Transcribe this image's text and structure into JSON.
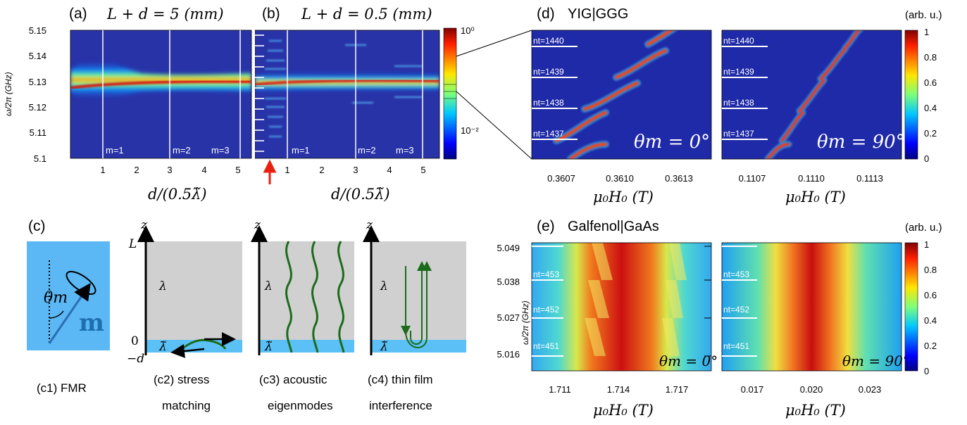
{
  "labels": {
    "panel_a": "(a)",
    "title_a": "L + d = 5  (mm)",
    "panel_b": "(b)",
    "title_b": "L + d = 0.5  (mm)",
    "panel_c": "(c)",
    "panel_d": "(d)",
    "title_d": "YIG|GGG",
    "panel_e": "(e)",
    "title_e": "Galfenol|GaAs",
    "arb_units": "(arb. u.)",
    "ylabel_ab": "ω/2π (GHz)",
    "ylabel_e": "ω/2π (GHz)",
    "xlabel_ab": "d/(0.5λ̃)",
    "xlabel_de": "μ₀H₀ (T)",
    "theta0": "θm = 0°",
    "theta90": "θm = 90°"
  },
  "mode_labels": [
    "m=1",
    "m=2",
    "m=3"
  ],
  "colorbar_ab": [
    "10⁰",
    "10⁻²"
  ],
  "colorbar_lin": [
    "1",
    "0.8",
    "0.6",
    "0.4",
    "0.2",
    "0"
  ],
  "colorbar_e": [
    "1",
    "0.8",
    "0.6",
    "0.4",
    "0.2",
    "0"
  ],
  "nt_d": [
    "nt=1440",
    "nt=1439",
    "nt=1438",
    "nt=1437"
  ],
  "nt_e": [
    "nt=453",
    "nt=452",
    "nt=451"
  ],
  "c_labels": {
    "z": "z",
    "L": "L",
    "zero": "0",
    "minus_d": "−d",
    "lambda": "λ",
    "lambda_t": "λ̃",
    "theta": "θm",
    "m": "m",
    "c1": "(c1) FMR",
    "c2a": "(c2) stress",
    "c2b": "matching",
    "c3a": "(c3) acoustic",
    "c3b": "eigenmodes",
    "c4a": "(c4) thin film",
    "c4b": "interference"
  },
  "chart_data": [
    {
      "type": "heatmap",
      "id": "a",
      "title": "L + d = 5  (mm)",
      "xlabel": "d/(0.5λ̃)",
      "ylabel": "ω/2π (GHz)",
      "xticks": [
        1,
        2,
        3,
        4,
        5
      ],
      "yticks": [
        5.1,
        5.11,
        5.12,
        5.13,
        5.14,
        5.15
      ],
      "xlim": [
        0.1,
        5.6
      ],
      "ylim": [
        5.1,
        5.15
      ],
      "colorscale": "log",
      "colorbar_ticks": [
        "10⁰",
        "10⁻²"
      ],
      "annotations": [
        "m=1",
        "m=2",
        "m=3"
      ]
    },
    {
      "type": "heatmap",
      "id": "b",
      "title": "L + d = 0.5  (mm)",
      "xlabel": "d/(0.5λ̃)",
      "xticks": [
        1,
        2,
        3,
        4,
        5
      ],
      "xlim": [
        0.1,
        5.6
      ],
      "ylim": [
        5.1,
        5.15
      ],
      "colorscale": "log",
      "annotations": [
        "m=1",
        "m=2",
        "m=3"
      ]
    },
    {
      "type": "heatmap",
      "id": "d-left",
      "title": "YIG|GGG",
      "xlabel": "μ₀H₀ (T)",
      "xticks": [
        0.3607,
        0.361,
        0.3613
      ],
      "annotations": [
        "nt=1440",
        "nt=1439",
        "nt=1438",
        "nt=1437",
        "θm = 0°"
      ]
    },
    {
      "type": "heatmap",
      "id": "d-right",
      "xlabel": "μ₀H₀ (T)",
      "xticks": [
        0.1107,
        0.111,
        0.1113
      ],
      "colorbar_ticks": [
        0,
        0.2,
        0.4,
        0.6,
        0.8,
        1
      ],
      "annotations": [
        "nt=1440",
        "nt=1439",
        "nt=1438",
        "nt=1437",
        "θm = 90°"
      ]
    },
    {
      "type": "heatmap",
      "id": "e-left",
      "title": "Galfenol|GaAs",
      "xlabel": "μ₀H₀ (T)",
      "ylabel": "ω/2π (GHz)",
      "xticks": [
        1.711,
        1.714,
        1.717
      ],
      "yticks": [
        5.016,
        5.027,
        5.038,
        5.049
      ],
      "annotations": [
        "nt=453",
        "nt=452",
        "nt=451",
        "θm = 0°"
      ]
    },
    {
      "type": "heatmap",
      "id": "e-right",
      "xlabel": "μ₀H₀ (T)",
      "xticks": [
        0.017,
        0.02,
        0.023
      ],
      "colorbar_ticks": [
        0,
        0.2,
        0.4,
        0.6,
        0.8,
        1
      ],
      "annotations": [
        "nt=453",
        "nt=452",
        "nt=451",
        "θm = 90°"
      ]
    }
  ]
}
